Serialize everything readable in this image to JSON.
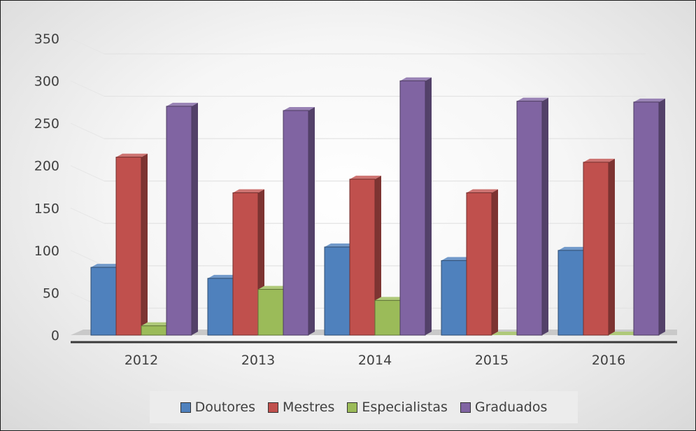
{
  "chart_data": {
    "type": "bar",
    "style": "3d-clustered-column",
    "categories": [
      "2012",
      "2013",
      "2014",
      "2015",
      "2016"
    ],
    "series": [
      {
        "name": "Doutores",
        "values": [
          80,
          67,
          104,
          88,
          100
        ],
        "color": "#4f81bd"
      },
      {
        "name": "Mestres",
        "values": [
          210,
          168,
          184,
          168,
          204
        ],
        "color": "#c0504d"
      },
      {
        "name": "Especialistas",
        "values": [
          11,
          54,
          41,
          0,
          0
        ],
        "color": "#9bbb59"
      },
      {
        "name": "Graduados",
        "values": [
          270,
          265,
          300,
          276,
          275
        ],
        "color": "#8064a2"
      }
    ],
    "ylim": [
      0,
      350
    ],
    "yticks": [
      0,
      50,
      100,
      150,
      200,
      250,
      300,
      350
    ],
    "grid": true,
    "legend_position": "bottom"
  }
}
